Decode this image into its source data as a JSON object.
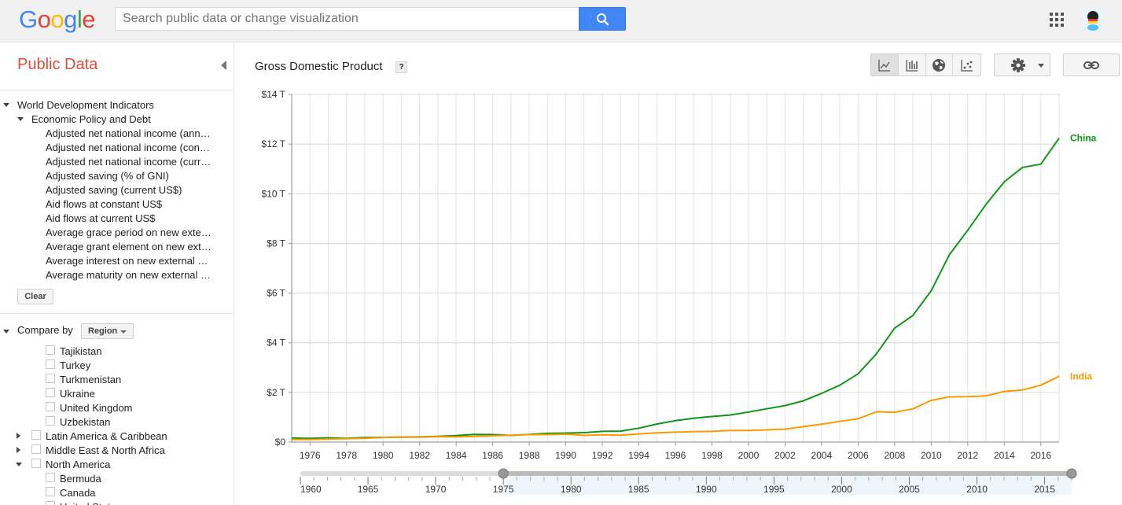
{
  "header": {
    "logo_letters": [
      {
        "ch": "G",
        "color": "#4285f4"
      },
      {
        "ch": "o",
        "color": "#ea4335"
      },
      {
        "ch": "o",
        "color": "#fbbc05"
      },
      {
        "ch": "g",
        "color": "#4285f4"
      },
      {
        "ch": "l",
        "color": "#34a853"
      },
      {
        "ch": "e",
        "color": "#ea4335"
      }
    ],
    "search_placeholder": "Search public data or change visualization",
    "search_icon": "search-icon",
    "apps_icon": "apps-grid-icon",
    "avatar_icon": "avatar"
  },
  "sidebar": {
    "title": "Public Data",
    "tree": {
      "root": "World Development Indicators",
      "group": "Economic Policy and Debt",
      "items": [
        "Adjusted net national income (ann…",
        "Adjusted net national income (con…",
        "Adjusted net national income (curr…",
        "Adjusted saving (% of GNI)",
        "Adjusted saving (current US$)",
        "Aid flows at constant US$",
        "Aid flows at current US$",
        "Average grace period on new exte…",
        "Average grant element on new ext…",
        "Average interest on new external …",
        "Average maturity on new external …"
      ]
    },
    "clear_label": "Clear",
    "compare": {
      "label": "Compare by",
      "select_value": "Region",
      "countries_top": [
        "Tajikistan",
        "Turkey",
        "Turkmenistan",
        "Ukraine",
        "United Kingdom",
        "Uzbekistan"
      ],
      "regions": [
        "Latin America & Caribbean",
        "Middle East & North Africa",
        "North America"
      ],
      "countries_bottom": [
        "Bermuda",
        "Canada",
        "United States"
      ]
    }
  },
  "main": {
    "title": "Gross Domestic Product",
    "help_label": "?",
    "view_buttons": [
      "line-chart-icon",
      "bar-chart-icon",
      "map-icon",
      "bubble-chart-icon"
    ],
    "active_view": "line-chart-icon",
    "settings_icon": "gear-icon",
    "link_icon": "link-icon"
  },
  "chart_data": {
    "type": "line",
    "title": "Gross Domestic Product",
    "x": [
      1975,
      1976,
      1977,
      1978,
      1979,
      1980,
      1981,
      1982,
      1983,
      1984,
      1985,
      1986,
      1987,
      1988,
      1989,
      1990,
      1991,
      1992,
      1993,
      1994,
      1995,
      1996,
      1997,
      1998,
      1999,
      2000,
      2001,
      2002,
      2003,
      2004,
      2005,
      2006,
      2007,
      2008,
      2009,
      2010,
      2011,
      2012,
      2013,
      2014,
      2015,
      2016,
      2017
    ],
    "series": [
      {
        "name": "China",
        "color": "#109618",
        "values": [
          0.16,
          0.15,
          0.17,
          0.15,
          0.18,
          0.19,
          0.2,
          0.21,
          0.23,
          0.26,
          0.31,
          0.3,
          0.27,
          0.31,
          0.35,
          0.36,
          0.38,
          0.43,
          0.44,
          0.56,
          0.73,
          0.86,
          0.96,
          1.03,
          1.09,
          1.21,
          1.34,
          1.47,
          1.66,
          1.96,
          2.29,
          2.75,
          3.55,
          4.59,
          5.1,
          6.09,
          7.55,
          8.53,
          9.57,
          10.48,
          11.06,
          11.19,
          12.24
        ]
      },
      {
        "name": "India",
        "color": "#ff9900",
        "values": [
          0.1,
          0.1,
          0.12,
          0.14,
          0.15,
          0.19,
          0.2,
          0.2,
          0.22,
          0.21,
          0.23,
          0.25,
          0.28,
          0.3,
          0.3,
          0.32,
          0.27,
          0.29,
          0.28,
          0.33,
          0.37,
          0.4,
          0.42,
          0.43,
          0.47,
          0.47,
          0.49,
          0.52,
          0.62,
          0.72,
          0.83,
          0.94,
          1.22,
          1.2,
          1.34,
          1.68,
          1.82,
          1.83,
          1.86,
          2.04,
          2.1,
          2.29,
          2.65
        ]
      }
    ],
    "y_ticks": [
      "$0",
      "$2 T",
      "$4 T",
      "$6 T",
      "$8 T",
      "$10 T",
      "$12 T",
      "$14 T"
    ],
    "ylim": [
      0,
      14
    ],
    "x_tick_labels": [
      "1976",
      "1978",
      "1980",
      "1982",
      "1984",
      "1986",
      "1988",
      "1990",
      "1992",
      "1994",
      "1996",
      "1998",
      "2000",
      "2002",
      "2004",
      "2006",
      "2008",
      "2010",
      "2012",
      "2014",
      "2016"
    ],
    "timeline": {
      "labels": [
        "1960",
        "1965",
        "1970",
        "1975",
        "1980",
        "1985",
        "1990",
        "1995",
        "2000",
        "2005",
        "2010",
        "2015"
      ],
      "range": [
        1960,
        2017
      ],
      "selected": [
        1975,
        2017
      ]
    },
    "grid": true,
    "legend": "inline-right"
  }
}
